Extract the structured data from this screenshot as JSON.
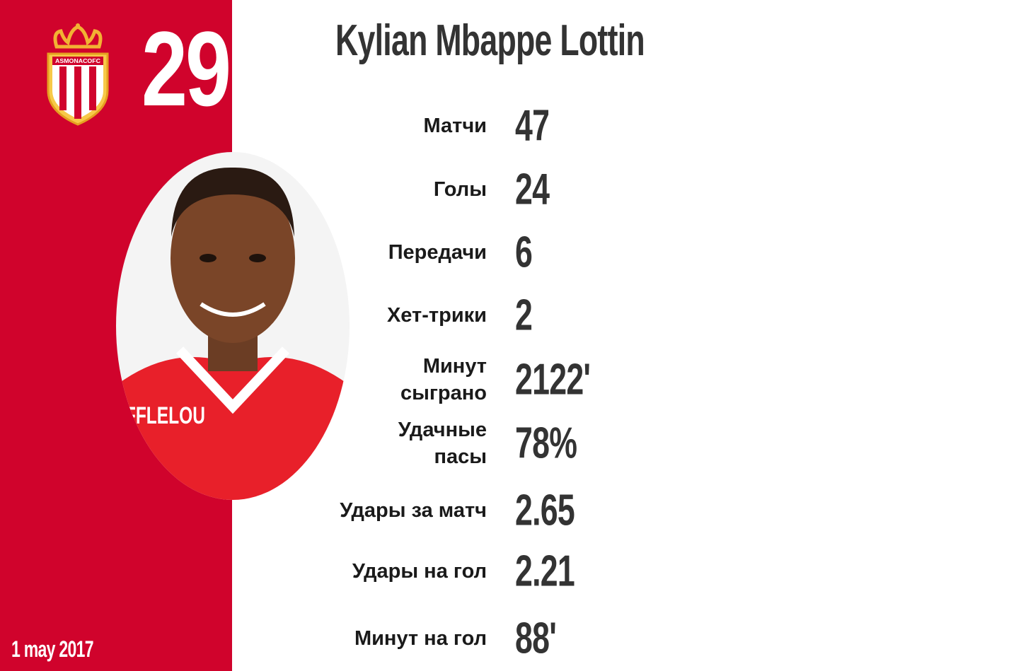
{
  "colors": {
    "panel": "#d0032c",
    "text": "#333333"
  },
  "player": {
    "number": "29",
    "name": "Kylian Mbappe Lottin",
    "date": "1 may 2017",
    "club_crest": "AS Monaco crest",
    "crest_text": "ASMONACOFC",
    "jersey_text": "IFFLELOU"
  },
  "stats": [
    {
      "label": "Матчи",
      "value": "47"
    },
    {
      "label": "Голы",
      "value": "24"
    },
    {
      "label": "Передачи",
      "value": "6"
    },
    {
      "label": "Хет-трики",
      "value": "2"
    },
    {
      "label": "Минут сыграно",
      "value": "2122'"
    },
    {
      "label": "Удачные пасы",
      "value": "78%"
    },
    {
      "label": "Удары за матч",
      "value": "2.65"
    },
    {
      "label": "Удары на гол",
      "value": "2.21"
    },
    {
      "label": "Минут на гол",
      "value": "88'"
    }
  ]
}
